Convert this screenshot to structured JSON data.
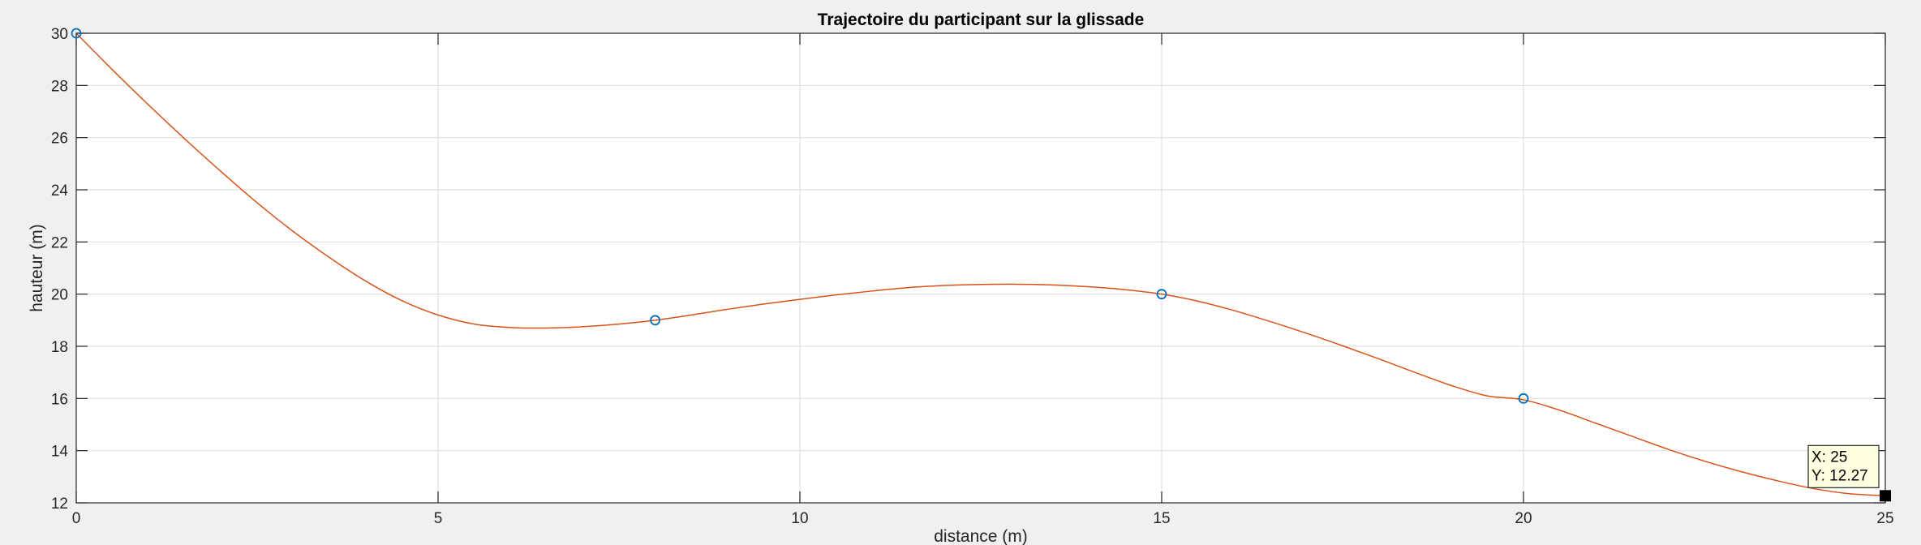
{
  "chart_data": {
    "type": "line",
    "title": "Trajectoire du participant sur la glissade",
    "xlabel": "distance (m)",
    "ylabel": "hauteur (m)",
    "xlim": [
      0,
      25
    ],
    "ylim": [
      12,
      30
    ],
    "xticks": [
      0,
      5,
      10,
      15,
      20,
      25
    ],
    "yticks": [
      12,
      14,
      16,
      18,
      20,
      22,
      24,
      26,
      28,
      30
    ],
    "grid": true,
    "series": [
      {
        "kind": "curve",
        "color": "#d95319",
        "x": [
          0,
          0.5,
          1,
          1.5,
          2,
          2.5,
          3,
          3.5,
          4,
          4.5,
          5,
          5.5,
          6,
          6.5,
          7,
          7.5,
          8,
          8.5,
          9,
          9.5,
          10,
          10.5,
          11,
          11.5,
          12,
          12.5,
          13,
          13.5,
          14,
          14.5,
          15,
          15.5,
          16,
          16.5,
          17,
          17.5,
          18,
          18.5,
          19,
          19.5,
          20,
          20.5,
          21,
          21.5,
          22,
          22.5,
          23,
          23.5,
          24,
          24.5,
          25
        ],
        "y": [
          30.0,
          28.6,
          27.25,
          25.95,
          24.7,
          23.5,
          22.4,
          21.4,
          20.5,
          19.75,
          19.2,
          18.85,
          18.72,
          18.7,
          18.75,
          18.85,
          19.0,
          19.2,
          19.42,
          19.62,
          19.8,
          19.97,
          20.12,
          20.25,
          20.33,
          20.37,
          20.38,
          20.35,
          20.28,
          20.17,
          20.0,
          19.73,
          19.37,
          18.95,
          18.5,
          18.02,
          17.52,
          17.0,
          16.5,
          16.1,
          15.95,
          15.55,
          15.05,
          14.55,
          14.05,
          13.6,
          13.2,
          12.85,
          12.55,
          12.35,
          12.27
        ]
      },
      {
        "kind": "markers",
        "marker": "circle",
        "color": "#0072bd",
        "x": [
          0,
          8,
          15,
          20,
          25
        ],
        "y": [
          30,
          19,
          20,
          16,
          12.27
        ]
      }
    ],
    "datatip": {
      "x_label": "X: 25",
      "y_label": "Y: 12.27",
      "x": 25,
      "y": 12.27
    }
  }
}
